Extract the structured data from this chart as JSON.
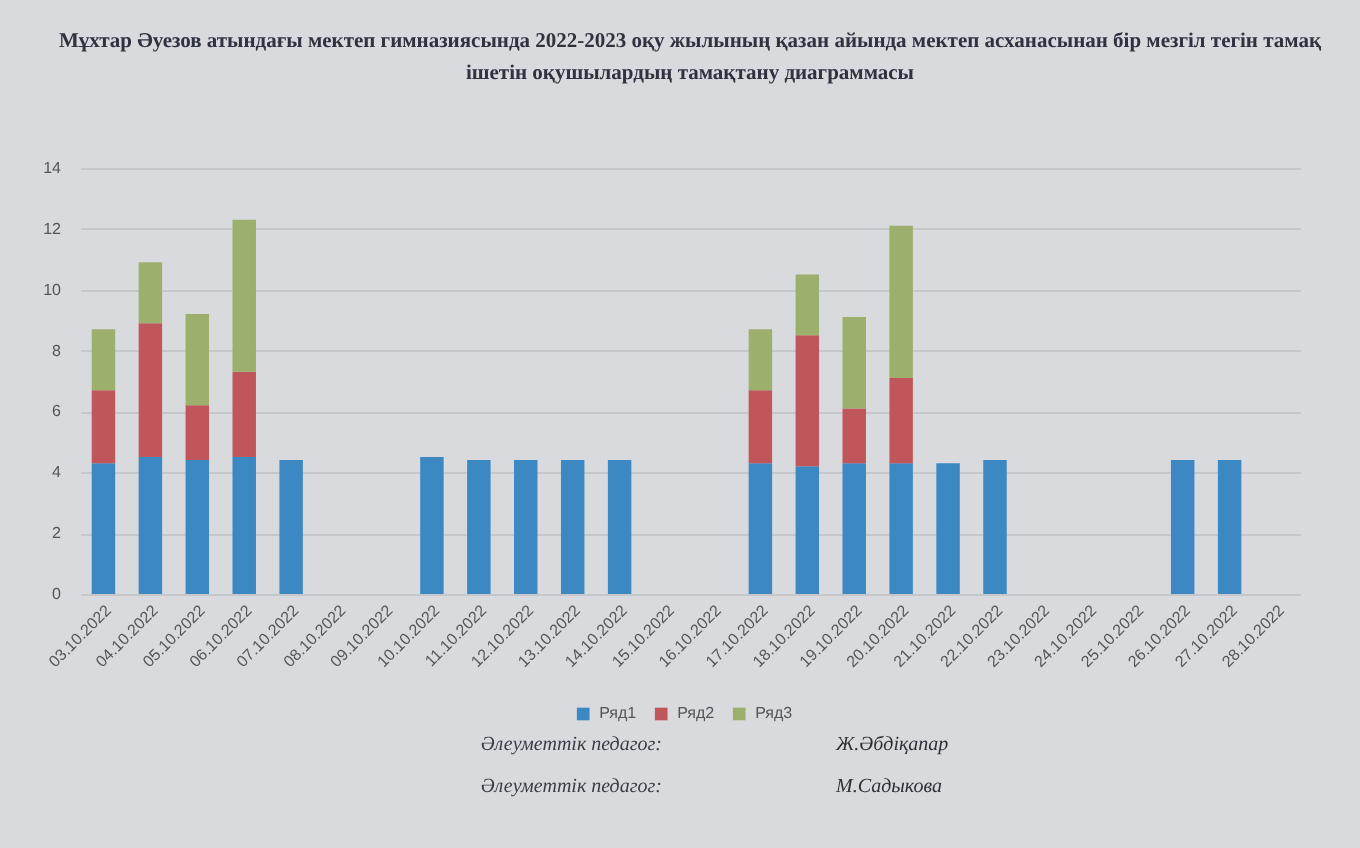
{
  "chart_data": {
    "type": "bar",
    "stacked": true,
    "title": "Мұхтар Әуезов атындағы мектеп гимназиясында 2022-2023 оқу жылының қазан айында мектеп асханасынан бір мезгіл тегін тамақ ішетін оқушылардың тамақтану диаграммасы",
    "categories": [
      "03.10.2022",
      "04.10.2022",
      "05.10.2022",
      "06.10.2022",
      "07.10.2022",
      "08.10.2022",
      "09.10.2022",
      "10.10.2022",
      "11.10.2022",
      "12.10.2022",
      "13.10.2022",
      "14.10.2022",
      "15.10.2022",
      "16.10.2022",
      "17.10.2022",
      "18.10.2022",
      "19.10.2022",
      "20.10.2022",
      "21.10.2022",
      "22.10.2022",
      "23.10.2022",
      "24.10.2022",
      "25.10.2022",
      "26.10.2022",
      "27.10.2022",
      "28.10.2022"
    ],
    "series": [
      {
        "name": "Ряд1",
        "color": "#3b88c3",
        "values": [
          4.3,
          4.5,
          4.4,
          4.5,
          4.4,
          null,
          null,
          4.5,
          4.4,
          4.4,
          4.4,
          4.4,
          null,
          null,
          4.3,
          4.2,
          4.3,
          4.3,
          4.3,
          4.4,
          null,
          null,
          null,
          4.4,
          4.4,
          null
        ]
      },
      {
        "name": "Ряд2",
        "color": "#c0565a",
        "values": [
          2.4,
          4.4,
          1.8,
          2.8,
          null,
          null,
          null,
          null,
          null,
          null,
          null,
          null,
          null,
          null,
          2.4,
          4.3,
          1.8,
          2.8,
          null,
          null,
          null,
          null,
          null,
          null,
          null,
          null
        ]
      },
      {
        "name": "Ряд3",
        "color": "#9caf6c",
        "values": [
          2.0,
          2.0,
          3.0,
          5.0,
          null,
          null,
          null,
          null,
          null,
          null,
          null,
          null,
          null,
          null,
          2.0,
          2.0,
          3.0,
          5.0,
          null,
          null,
          null,
          null,
          null,
          null,
          null,
          null
        ]
      }
    ],
    "ylim": [
      0,
      14
    ],
    "yticks": [
      0,
      2,
      4,
      6,
      8,
      10,
      12,
      14
    ],
    "grid": "y",
    "legend": "bottom",
    "annotations": [
      "Әлеуметтік педагог:",
      "Ж.Әбдіқапар",
      "Әлеуметтік педагог:",
      "М.Садыкова"
    ]
  }
}
